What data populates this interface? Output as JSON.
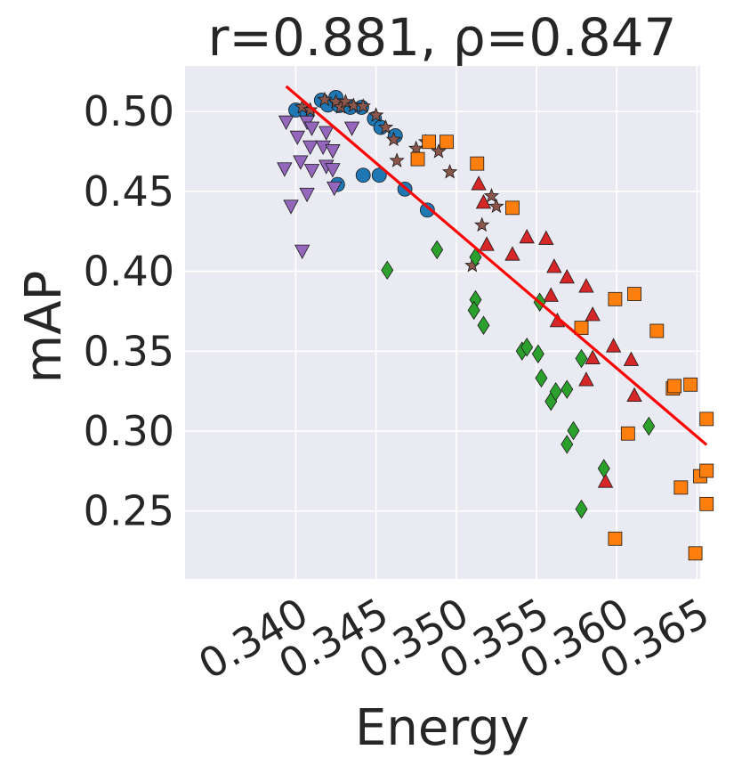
{
  "chart_data": {
    "type": "scatter",
    "title": "r=0.881, ρ=0.847",
    "xlabel": "Energy",
    "ylabel": "mAP",
    "xlim": [
      0.3331,
      0.3652
    ],
    "ylim": [
      0.2075,
      0.5285
    ],
    "xticks": [
      "0.340",
      "0.345",
      "0.350",
      "0.355",
      "0.360",
      "0.365"
    ],
    "yticks": [
      "0.25",
      "0.30",
      "0.35",
      "0.40",
      "0.45",
      "0.50"
    ],
    "xtick_values": [
      0.34,
      0.345,
      0.35,
      0.355,
      0.36,
      0.365
    ],
    "ytick_values": [
      0.25,
      0.3,
      0.35,
      0.4,
      0.45,
      0.5
    ],
    "grid": true,
    "background": "#eaeaf2",
    "fit_line": {
      "color": "#ff0000",
      "x": [
        0.3394,
        0.3656
      ],
      "y": [
        0.5157,
        0.2914
      ]
    },
    "series": [
      {
        "marker": "circle",
        "color": "#1f77b4",
        "points": [
          [
            0.34,
            0.5009
          ],
          [
            0.3407,
            0.4985
          ],
          [
            0.3416,
            0.507
          ],
          [
            0.342,
            0.504
          ],
          [
            0.3425,
            0.5088
          ],
          [
            0.3427,
            0.5037
          ],
          [
            0.3434,
            0.5026
          ],
          [
            0.3441,
            0.5026
          ],
          [
            0.3449,
            0.4954
          ],
          [
            0.3453,
            0.49
          ],
          [
            0.3462,
            0.4848
          ],
          [
            0.3426,
            0.4543
          ],
          [
            0.3442,
            0.4601
          ],
          [
            0.3452,
            0.4601
          ],
          [
            0.3468,
            0.4514
          ],
          [
            0.3482,
            0.4383
          ]
        ]
      },
      {
        "marker": "triangle-down",
        "color": "#9467bd",
        "points": [
          [
            0.3394,
            0.4933
          ],
          [
            0.3393,
            0.464
          ],
          [
            0.3397,
            0.4406
          ],
          [
            0.3401,
            0.4838
          ],
          [
            0.3403,
            0.4684
          ],
          [
            0.3404,
            0.4125
          ],
          [
            0.3407,
            0.4481
          ],
          [
            0.3407,
            0.4933
          ],
          [
            0.3409,
            0.4777
          ],
          [
            0.341,
            0.4895
          ],
          [
            0.341,
            0.463
          ],
          [
            0.3417,
            0.4777
          ],
          [
            0.3419,
            0.4656
          ],
          [
            0.3419,
            0.4867
          ],
          [
            0.3423,
            0.4635
          ],
          [
            0.3423,
            0.4753
          ],
          [
            0.3424,
            0.452
          ],
          [
            0.3435,
            0.4895
          ]
        ]
      },
      {
        "marker": "star",
        "color": "#8c564b",
        "points": [
          [
            0.3404,
            0.5027
          ],
          [
            0.3409,
            0.5009
          ],
          [
            0.3418,
            0.5074
          ],
          [
            0.3425,
            0.506
          ],
          [
            0.3428,
            0.5027
          ],
          [
            0.3431,
            0.506
          ],
          [
            0.3436,
            0.5037
          ],
          [
            0.3442,
            0.5032
          ],
          [
            0.345,
            0.4976
          ],
          [
            0.3456,
            0.49
          ],
          [
            0.3461,
            0.4824
          ],
          [
            0.3463,
            0.4692
          ],
          [
            0.3475,
            0.4768
          ],
          [
            0.3481,
            0.481
          ],
          [
            0.3489,
            0.4749
          ],
          [
            0.3496,
            0.4621
          ],
          [
            0.351,
            0.4036
          ],
          [
            0.3516,
            0.4289
          ],
          [
            0.3522,
            0.4471
          ],
          [
            0.3525,
            0.4406
          ]
        ]
      },
      {
        "marker": "square",
        "color": "#ff7f0e",
        "points": [
          [
            0.3476,
            0.4702
          ],
          [
            0.3483,
            0.481
          ],
          [
            0.3494,
            0.481
          ],
          [
            0.3513,
            0.4674
          ],
          [
            0.3535,
            0.4397
          ],
          [
            0.3578,
            0.3646
          ],
          [
            0.3599,
            0.3826
          ],
          [
            0.3611,
            0.3858
          ],
          [
            0.3625,
            0.3627
          ],
          [
            0.3635,
            0.3267
          ],
          [
            0.3636,
            0.3282
          ],
          [
            0.3646,
            0.3291
          ],
          [
            0.3656,
            0.3076
          ],
          [
            0.3607,
            0.2985
          ],
          [
            0.364,
            0.2647
          ],
          [
            0.3652,
            0.2718
          ],
          [
            0.3656,
            0.2752
          ],
          [
            0.3656,
            0.2544
          ],
          [
            0.3599,
            0.2327
          ],
          [
            0.3649,
            0.2235
          ]
        ]
      },
      {
        "marker": "triangle-up",
        "color": "#d62728",
        "points": [
          [
            0.3514,
            0.4549
          ],
          [
            0.3517,
            0.4433
          ],
          [
            0.3519,
            0.4169
          ],
          [
            0.3535,
            0.4108
          ],
          [
            0.3544,
            0.4216
          ],
          [
            0.3556,
            0.4207
          ],
          [
            0.3559,
            0.3851
          ],
          [
            0.3561,
            0.4031
          ],
          [
            0.3563,
            0.3692
          ],
          [
            0.3569,
            0.3965
          ],
          [
            0.3581,
            0.3908
          ],
          [
            0.3585,
            0.373
          ],
          [
            0.3585,
            0.3459
          ],
          [
            0.3598,
            0.3534
          ],
          [
            0.3581,
            0.3323
          ],
          [
            0.3609,
            0.3449
          ],
          [
            0.3611,
            0.3225
          ],
          [
            0.3593,
            0.2687
          ]
        ]
      },
      {
        "marker": "diamond",
        "color": "#2ca02c",
        "points": [
          [
            0.3457,
            0.4007
          ],
          [
            0.3488,
            0.4135
          ],
          [
            0.3512,
            0.4088
          ],
          [
            0.3512,
            0.3822
          ],
          [
            0.3511,
            0.3756
          ],
          [
            0.3517,
            0.3662
          ],
          [
            0.3541,
            0.3501
          ],
          [
            0.3544,
            0.3525
          ],
          [
            0.3551,
            0.3483
          ],
          [
            0.3552,
            0.3807
          ],
          [
            0.3553,
            0.3332
          ],
          [
            0.3559,
            0.3186
          ],
          [
            0.3562,
            0.3247
          ],
          [
            0.3569,
            0.3261
          ],
          [
            0.3573,
            0.3003
          ],
          [
            0.3578,
            0.3454
          ],
          [
            0.3569,
            0.2917
          ],
          [
            0.3578,
            0.2512
          ],
          [
            0.3592,
            0.2766
          ],
          [
            0.362,
            0.3031
          ]
        ]
      }
    ]
  }
}
